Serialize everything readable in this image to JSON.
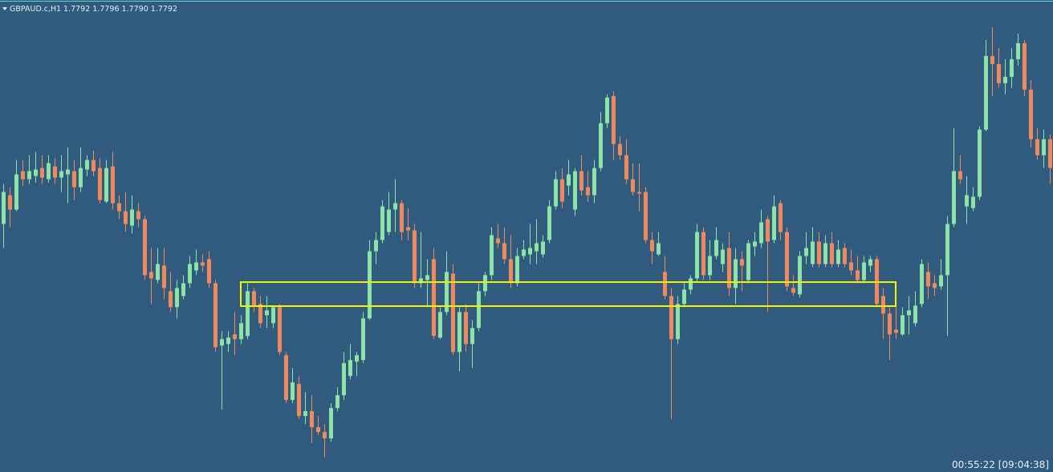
{
  "chart_data": {
    "type": "candlestick",
    "title": "GBPAUD.c,H1",
    "quote": "1.7792 1.7796 1.7790 1.7792",
    "timer": "00:55:22 [09:04:38]",
    "ylim": [
      1.76,
      1.7895
    ],
    "up_color": "#8de4a7",
    "down_color": "#f08a5d",
    "background": "#305a7e",
    "open": [
      1.7755,
      1.7773,
      1.7764,
      1.7788,
      1.7783,
      1.7785,
      1.779,
      1.7783,
      1.7791,
      1.7784,
      1.7786,
      1.7788,
      1.7778,
      1.7789,
      1.7795,
      1.779,
      1.7769,
      1.7791,
      1.7768,
      1.7763,
      1.7754,
      1.7763,
      1.7758,
      1.7725,
      1.772,
      1.7729,
      1.7713,
      1.7703,
      1.771,
      1.7718,
      1.7726,
      1.7731,
      1.7733,
      1.7718,
      1.7679,
      1.768,
      1.7686,
      1.7683,
      1.7685,
      1.7713,
      1.7705,
      1.7698,
      1.7693,
      1.7703,
      1.7673,
      1.7645,
      1.7655,
      1.7635,
      1.7638,
      1.7628,
      1.7625,
      1.7621,
      1.764,
      1.7648,
      1.766,
      1.7669,
      1.767,
      1.7696,
      1.7738,
      1.7745,
      1.775,
      1.7764,
      1.7768,
      1.7753,
      1.7751,
      1.7718,
      1.772,
      1.7733,
      1.7684,
      1.77,
      1.7724,
      1.7675,
      1.77,
      1.768,
      1.769,
      1.7713,
      1.7723,
      1.7746,
      1.7743,
      1.7733,
      1.7718,
      1.7735,
      1.7736,
      1.7738,
      1.7736,
      1.7745,
      1.7766,
      1.7783,
      1.7779,
      1.7764,
      1.7788,
      1.7778,
      1.7773,
      1.779,
      1.7818,
      1.7835,
      1.7805,
      1.7798,
      1.7783,
      1.7775,
      1.7775,
      1.7745,
      1.7736,
      1.7725,
      1.771,
      1.7683,
      1.7705,
      1.7714,
      1.7721,
      1.775,
      1.7723,
      1.7735,
      1.773,
      1.774,
      1.7715,
      1.7733,
      1.772,
      1.7741,
      1.7743,
      1.7758,
      1.7745,
      1.7768,
      1.775,
      1.7715,
      1.7711,
      1.7735,
      1.773,
      1.7744,
      1.773,
      1.7743,
      1.773,
      1.774,
      1.7731,
      1.7726,
      1.772,
      1.7729,
      1.7733,
      1.771,
      1.7699,
      1.7689,
      1.7686,
      1.7698,
      1.7693,
      1.7705,
      1.7725,
      1.7718,
      1.7716,
      1.7723,
      1.7755,
      1.7788,
      1.7766,
      1.7765,
      1.7772,
      1.7814,
      1.786,
      1.7855,
      1.7843,
      1.7847,
      1.7858,
      1.7868,
      1.7839,
      1.7808,
      1.7798,
      1.7808
    ],
    "high": [
      1.778,
      1.7778,
      1.7795,
      1.7795,
      1.7798,
      1.78,
      1.7798,
      1.7798,
      1.7796,
      1.7798,
      1.7803,
      1.7795,
      1.7803,
      1.7798,
      1.7801,
      1.7796,
      1.7795,
      1.78,
      1.7773,
      1.7775,
      1.7773,
      1.7768,
      1.776,
      1.774,
      1.774,
      1.774,
      1.7725,
      1.772,
      1.7723,
      1.7735,
      1.7739,
      1.7736,
      1.7738,
      1.772,
      1.7688,
      1.7688,
      1.77,
      1.7698,
      1.7719,
      1.7715,
      1.771,
      1.771,
      1.7703,
      1.7705,
      1.7675,
      1.7665,
      1.766,
      1.765,
      1.7648,
      1.7635,
      1.763,
      1.7643,
      1.7653,
      1.7675,
      1.768,
      1.7675,
      1.77,
      1.7745,
      1.775,
      1.777,
      1.7775,
      1.7783,
      1.777,
      1.7765,
      1.7755,
      1.775,
      1.7733,
      1.774,
      1.7703,
      1.7738,
      1.773,
      1.7703,
      1.7705,
      1.7695,
      1.7718,
      1.7725,
      1.7753,
      1.7755,
      1.7753,
      1.7748,
      1.774,
      1.7745,
      1.7755,
      1.7758,
      1.7748,
      1.777,
      1.7788,
      1.779,
      1.7795,
      1.779,
      1.7798,
      1.7788,
      1.7795,
      1.7825,
      1.7836,
      1.7838,
      1.781,
      1.7808,
      1.7793,
      1.7793,
      1.7778,
      1.775,
      1.775,
      1.7735,
      1.7715,
      1.771,
      1.7718,
      1.7723,
      1.7755,
      1.7753,
      1.7745,
      1.7753,
      1.7743,
      1.775,
      1.774,
      1.7738,
      1.7745,
      1.775,
      1.7764,
      1.776,
      1.7773,
      1.777,
      1.7753,
      1.7723,
      1.7738,
      1.775,
      1.7753,
      1.775,
      1.7748,
      1.775,
      1.7745,
      1.7743,
      1.7739,
      1.7735,
      1.7735,
      1.7735,
      1.7735,
      1.7715,
      1.7703,
      1.7705,
      1.7703,
      1.771,
      1.7713,
      1.7733,
      1.7731,
      1.7723,
      1.7733,
      1.776,
      1.7815,
      1.7798,
      1.7785,
      1.7778,
      1.7816,
      1.787,
      1.7878,
      1.7865,
      1.7858,
      1.7865,
      1.7874,
      1.787,
      1.7845,
      1.7815,
      1.7814,
      1.7811
    ],
    "low": [
      1.774,
      1.7753,
      1.7763,
      1.7779,
      1.778,
      1.7781,
      1.778,
      1.7781,
      1.778,
      1.7775,
      1.7768,
      1.777,
      1.7775,
      1.7785,
      1.7785,
      1.7768,
      1.7768,
      1.7764,
      1.7758,
      1.775,
      1.7749,
      1.7753,
      1.772,
      1.7705,
      1.7718,
      1.7708,
      1.77,
      1.7696,
      1.7708,
      1.7715,
      1.7723,
      1.7725,
      1.7715,
      1.7675,
      1.7639,
      1.7675,
      1.7673,
      1.768,
      1.7683,
      1.77,
      1.769,
      1.769,
      1.769,
      1.7673,
      1.7643,
      1.7643,
      1.7633,
      1.763,
      1.7618,
      1.7623,
      1.7609,
      1.7619,
      1.7638,
      1.7645,
      1.7658,
      1.766,
      1.7668,
      1.7695,
      1.773,
      1.7743,
      1.7748,
      1.775,
      1.7745,
      1.7745,
      1.7715,
      1.7715,
      1.7703,
      1.7683,
      1.7683,
      1.7698,
      1.7673,
      1.7663,
      1.7675,
      1.7665,
      1.7688,
      1.771,
      1.772,
      1.774,
      1.773,
      1.7715,
      1.7716,
      1.7733,
      1.773,
      1.773,
      1.7734,
      1.7743,
      1.7764,
      1.7765,
      1.7773,
      1.776,
      1.7773,
      1.7769,
      1.7768,
      1.7788,
      1.7815,
      1.7795,
      1.7795,
      1.778,
      1.7773,
      1.7763,
      1.7743,
      1.773,
      1.7735,
      1.7708,
      1.7633,
      1.768,
      1.7703,
      1.7711,
      1.7719,
      1.772,
      1.772,
      1.7733,
      1.7725,
      1.771,
      1.7705,
      1.7713,
      1.7718,
      1.7735,
      1.774,
      1.77,
      1.7743,
      1.7745,
      1.7713,
      1.771,
      1.7709,
      1.773,
      1.7728,
      1.7728,
      1.7728,
      1.7728,
      1.7728,
      1.7728,
      1.7723,
      1.7718,
      1.7718,
      1.7725,
      1.7703,
      1.7683,
      1.767,
      1.7683,
      1.7685,
      1.7686,
      1.7691,
      1.7703,
      1.7708,
      1.771,
      1.7714,
      1.7685,
      1.7753,
      1.778,
      1.7755,
      1.7763,
      1.777,
      1.7813,
      1.7835,
      1.784,
      1.7836,
      1.784,
      1.7854,
      1.7835,
      1.7803,
      1.7795,
      1.779,
      1.778
    ],
    "close": [
      1.7775,
      1.7764,
      1.7786,
      1.7783,
      1.7788,
      1.7789,
      1.7784,
      1.7793,
      1.7784,
      1.7788,
      1.7789,
      1.7778,
      1.779,
      1.7795,
      1.7788,
      1.777,
      1.779,
      1.7768,
      1.7763,
      1.7755,
      1.7764,
      1.7758,
      1.7723,
      1.7721,
      1.773,
      1.7715,
      1.7703,
      1.7715,
      1.7718,
      1.773,
      1.7731,
      1.7729,
      1.7718,
      1.7678,
      1.7683,
      1.7684,
      1.7683,
      1.7693,
      1.7713,
      1.7704,
      1.7693,
      1.7701,
      1.7703,
      1.7675,
      1.7645,
      1.7656,
      1.7635,
      1.7638,
      1.7628,
      1.7625,
      1.7621,
      1.764,
      1.7648,
      1.7668,
      1.767,
      1.7673,
      1.7696,
      1.7738,
      1.7745,
      1.7766,
      1.7764,
      1.7768,
      1.775,
      1.7751,
      1.7718,
      1.7721,
      1.7723,
      1.7685,
      1.77,
      1.7725,
      1.7675,
      1.77,
      1.768,
      1.769,
      1.7713,
      1.7723,
      1.7748,
      1.7743,
      1.7733,
      1.7718,
      1.7735,
      1.7739,
      1.774,
      1.7743,
      1.7744,
      1.7766,
      1.7783,
      1.7769,
      1.7786,
      1.7788,
      1.7776,
      1.7773,
      1.779,
      1.7818,
      1.7834,
      1.7805,
      1.7798,
      1.7783,
      1.7775,
      1.7774,
      1.7745,
      1.7738,
      1.7743,
      1.771,
      1.7683,
      1.7705,
      1.7714,
      1.7721,
      1.775,
      1.7723,
      1.7735,
      1.7745,
      1.7739,
      1.7715,
      1.7733,
      1.7729,
      1.7743,
      1.7744,
      1.7756,
      1.7744,
      1.7766,
      1.775,
      1.7716,
      1.7712,
      1.7735,
      1.774,
      1.7744,
      1.773,
      1.7743,
      1.773,
      1.7739,
      1.773,
      1.7726,
      1.772,
      1.7731,
      1.7733,
      1.7705,
      1.7699,
      1.7686,
      1.7687,
      1.7698,
      1.7701,
      1.7704,
      1.773,
      1.7716,
      1.7715,
      1.7723,
      1.7755,
      1.7788,
      1.7783,
      1.7773,
      1.7772,
      1.7814,
      1.786,
      1.7855,
      1.7843,
      1.7847,
      1.7858,
      1.7868,
      1.7839,
      1.7808,
      1.7798,
      1.7808,
      1.779
    ]
  }
}
